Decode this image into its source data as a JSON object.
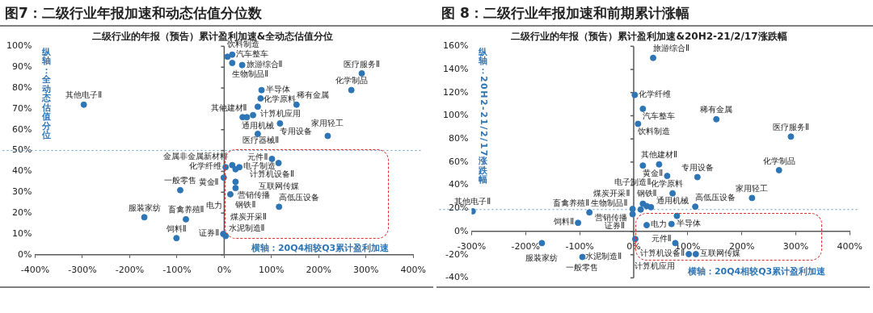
{
  "chart_data": [
    {
      "type": "scatter",
      "title": "图7：二级行业年报加速和动态估值分位数",
      "subtitle": "二级行业的年报（预告）累计盈利加速&全动态估值分位",
      "xlabel": "横轴：20Q4相较Q3累计盈利加速",
      "ylabel": "纵轴：全动态估值分位",
      "color": "#2e75b6",
      "marker": "circle",
      "x": [
        -297,
        7,
        17,
        17,
        38,
        291,
        269,
        79,
        77,
        153,
        71,
        39,
        48,
        61,
        118,
        71,
        219,
        101,
        115,
        3,
        17,
        32,
        24,
        -1,
        24,
        24,
        13,
        -93,
        116,
        -169,
        -81,
        -2,
        3,
        -101
      ],
      "values": [
        72,
        95,
        96,
        92,
        91,
        87,
        79,
        79,
        75,
        72,
        71,
        66,
        66,
        67,
        63,
        58,
        57,
        46,
        44,
        42,
        43,
        42,
        41,
        37,
        35,
        32,
        29,
        31,
        23,
        18,
        17,
        10,
        9,
        8
      ],
      "xlim": [
        -400,
        400
      ],
      "ylim": [
        0,
        100
      ],
      "xticks": [
        {
          "value": -400,
          "label": "-400%"
        },
        {
          "value": -300,
          "label": "-300%"
        },
        {
          "value": -200,
          "label": "-200%"
        },
        {
          "value": -100,
          "label": "-100%"
        },
        {
          "value": 0,
          "label": "0%"
        },
        {
          "value": 100,
          "label": "100%"
        },
        {
          "value": 200,
          "label": "200%"
        },
        {
          "value": 300,
          "label": "300%"
        },
        {
          "value": 400,
          "label": "400%"
        }
      ],
      "yticks": [
        {
          "value": 0,
          "label": "0%"
        },
        {
          "value": 10,
          "label": "10%"
        },
        {
          "value": 20,
          "label": "20%"
        },
        {
          "value": 30,
          "label": "30%"
        },
        {
          "value": 40,
          "label": "40%"
        },
        {
          "value": 50,
          "label": "50%"
        },
        {
          "value": 60,
          "label": "60%"
        },
        {
          "value": 70,
          "label": "70%"
        },
        {
          "value": 80,
          "label": "80%"
        },
        {
          "value": 90,
          "label": "90%"
        },
        {
          "value": 100,
          "label": "100%"
        }
      ],
      "ref_lines": [
        {
          "axis": "y",
          "value": 50,
          "color": "#5b9bd5",
          "line_style": "dotted"
        }
      ],
      "annotations": [
        {
          "text": "其他电子Ⅱ",
          "x": -297,
          "y": 72
        },
        {
          "text": "饮料制造",
          "x": 7,
          "y": 95
        },
        {
          "text": "汽车整车",
          "x": 17,
          "y": 96
        },
        {
          "text": "生物制品Ⅱ",
          "x": 17,
          "y": 92
        },
        {
          "text": "旅游综合Ⅱ",
          "x": 38,
          "y": 91
        },
        {
          "text": "医疗服务Ⅱ",
          "x": 291,
          "y": 87
        },
        {
          "text": "化学制品",
          "x": 269,
          "y": 79
        },
        {
          "text": "半导体",
          "x": 79,
          "y": 79
        },
        {
          "text": "计算机应用",
          "x": 77,
          "y": 75
        },
        {
          "text": "稀有金属",
          "x": 153,
          "y": 72
        },
        {
          "text": "通用机械",
          "x": 71,
          "y": 71
        },
        {
          "text": "医疗器械Ⅱ",
          "x": 39,
          "y": 66
        },
        {
          "text": "其他建材Ⅱ",
          "x": 48,
          "y": 66
        },
        {
          "text": "化学原料",
          "x": 61,
          "y": 67
        },
        {
          "text": "专用设备",
          "x": 118,
          "y": 63
        },
        {
          "text": "元件Ⅱ",
          "x": 71,
          "y": 58
        },
        {
          "text": "家用轻工",
          "x": 219,
          "y": 57
        },
        {
          "text": "计算机设备Ⅱ",
          "x": 101,
          "y": 46
        },
        {
          "text": "互联网传媒",
          "x": 115,
          "y": 44
        },
        {
          "text": "化学纤维",
          "x": 3,
          "y": 42
        },
        {
          "text": "黄金Ⅱ",
          "x": 17,
          "y": 43
        },
        {
          "text": "电子制造",
          "x": 32,
          "y": 42
        },
        {
          "text": "金属非金属新材料",
          "x": 24,
          "y": 41
        },
        {
          "text": "营销传播",
          "x": -1,
          "y": 37
        },
        {
          "text": "钢铁Ⅱ",
          "x": 24,
          "y": 35
        },
        {
          "text": "电力",
          "x": 24,
          "y": 32
        },
        {
          "text": "煤炭开采Ⅱ",
          "x": 13,
          "y": 29
        },
        {
          "text": "一般零售",
          "x": -93,
          "y": 31
        },
        {
          "text": "高低压设备",
          "x": 116,
          "y": 23
        },
        {
          "text": "服装家纺",
          "x": -169,
          "y": 18
        },
        {
          "text": "畜禽养殖Ⅱ",
          "x": -81,
          "y": 17
        },
        {
          "text": "证券Ⅱ",
          "x": -2,
          "y": 10
        },
        {
          "text": "水泥制造Ⅱ",
          "x": 3,
          "y": 9
        },
        {
          "text": "饲料Ⅱ",
          "x": -101,
          "y": 8
        }
      ]
    },
    {
      "type": "scatter",
      "title": "图 8：二级行业年报加速和前期累计涨幅",
      "subtitle": "二级行业的年报（预告）累计盈利加速&20H2-21/2/17涨跌幅",
      "xlabel": "横轴：20Q4相较Q3累计盈利加速",
      "ylabel": "纵轴：20H2-21/2/17涨跌幅",
      "color": "#2e75b6",
      "marker": "circle",
      "x": [
        36,
        2,
        17,
        153,
        8,
        291,
        17,
        47,
        62,
        118,
        269,
        72,
        219,
        17,
        24,
        32,
        13,
        -2,
        -2,
        114,
        80,
        70,
        24,
        3,
        77,
        102,
        115,
        -298,
        -82,
        -103,
        -170,
        -95
      ],
      "values": [
        150,
        118,
        106,
        97,
        93,
        82,
        57,
        58,
        48,
        47,
        53,
        33,
        29,
        24,
        22,
        21,
        19,
        19.5,
        15,
        21.5,
        13.5,
        6.5,
        5.5,
        -6.5,
        -10,
        -19.5,
        -19.5,
        17.5,
        16.5,
        7.5,
        -10,
        -22
      ],
      "xlim": [
        -300,
        400
      ],
      "ylim": [
        -40,
        160
      ],
      "xticks": [
        {
          "value": -300,
          "label": "-300%"
        },
        {
          "value": -200,
          "label": "-200%"
        },
        {
          "value": -100,
          "label": "-100%"
        },
        {
          "value": 0,
          "label": "0%"
        },
        {
          "value": 100,
          "label": "100%"
        },
        {
          "value": 200,
          "label": "200%"
        },
        {
          "value": 300,
          "label": "300%"
        },
        {
          "value": 400,
          "label": "400%"
        }
      ],
      "yticks": [
        {
          "value": -40,
          "label": "-40%"
        },
        {
          "value": -20,
          "label": "-20%"
        },
        {
          "value": 0,
          "label": "0%"
        },
        {
          "value": 20,
          "label": "20%"
        },
        {
          "value": 40,
          "label": "40%"
        },
        {
          "value": 60,
          "label": "60%"
        },
        {
          "value": 80,
          "label": "80%"
        },
        {
          "value": 100,
          "label": "100%"
        },
        {
          "value": 120,
          "label": "120%"
        },
        {
          "value": 140,
          "label": "140%"
        },
        {
          "value": 160,
          "label": "160%"
        }
      ],
      "ref_lines": [
        {
          "axis": "y",
          "value": 19,
          "color": "#5b9bd5",
          "line_style": "dotted"
        }
      ],
      "annotations": [
        {
          "text": "旅游综合Ⅱ",
          "x": 36,
          "y": 150
        },
        {
          "text": "化学纤维",
          "x": 2,
          "y": 118
        },
        {
          "text": "汽车整车",
          "x": 17,
          "y": 106
        },
        {
          "text": "稀有金属",
          "x": 153,
          "y": 97
        },
        {
          "text": "饮料制造",
          "x": 8,
          "y": 93
        },
        {
          "text": "医疗服务Ⅱ",
          "x": 291,
          "y": 82
        },
        {
          "text": "黄金Ⅱ",
          "x": 17,
          "y": 57
        },
        {
          "text": "其他建材Ⅱ",
          "x": 47,
          "y": 58
        },
        {
          "text": "化学原料",
          "x": 62,
          "y": 48
        },
        {
          "text": "专用设备",
          "x": 118,
          "y": 47
        },
        {
          "text": "化学制品",
          "x": 269,
          "y": 53
        },
        {
          "text": "通用机械",
          "x": 72,
          "y": 33
        },
        {
          "text": "家用轻工",
          "x": 219,
          "y": 29
        },
        {
          "text": "生物制品Ⅱ",
          "x": 17,
          "y": 24
        },
        {
          "text": "钢铁Ⅱ",
          "x": 24,
          "y": 22
        },
        {
          "text": "电子制造Ⅱ",
          "x": 32,
          "y": 21
        },
        {
          "text": "煤炭开采Ⅱ",
          "x": 13,
          "y": 19
        },
        {
          "text": "营销传播",
          "x": -2,
          "y": 19.5
        },
        {
          "text": "证券Ⅱ",
          "x": -2,
          "y": 15
        },
        {
          "text": "高低压设备",
          "x": 114,
          "y": 21.5
        },
        {
          "text": "半导体",
          "x": 80,
          "y": 13.5
        },
        {
          "text": "元件Ⅱ",
          "x": 70,
          "y": 6.5
        },
        {
          "text": "电力",
          "x": 24,
          "y": 5.5
        },
        {
          "text": "水泥制造Ⅱ",
          "x": 3,
          "y": -6.5
        },
        {
          "text": "计算机应用",
          "x": 77,
          "y": -10
        },
        {
          "text": "计算机设备Ⅱ",
          "x": 102,
          "y": -19.5
        },
        {
          "text": "互联网传媒",
          "x": 115,
          "y": -19.5
        },
        {
          "text": "其他电子Ⅱ",
          "x": -298,
          "y": 17.5
        },
        {
          "text": "畜禽养殖Ⅱ",
          "x": -82,
          "y": 16.5
        },
        {
          "text": "饲料Ⅱ",
          "x": -103,
          "y": 7.5
        },
        {
          "text": "服装家纺",
          "x": -170,
          "y": -10
        },
        {
          "text": "一般零售",
          "x": -95,
          "y": -22
        }
      ]
    }
  ]
}
